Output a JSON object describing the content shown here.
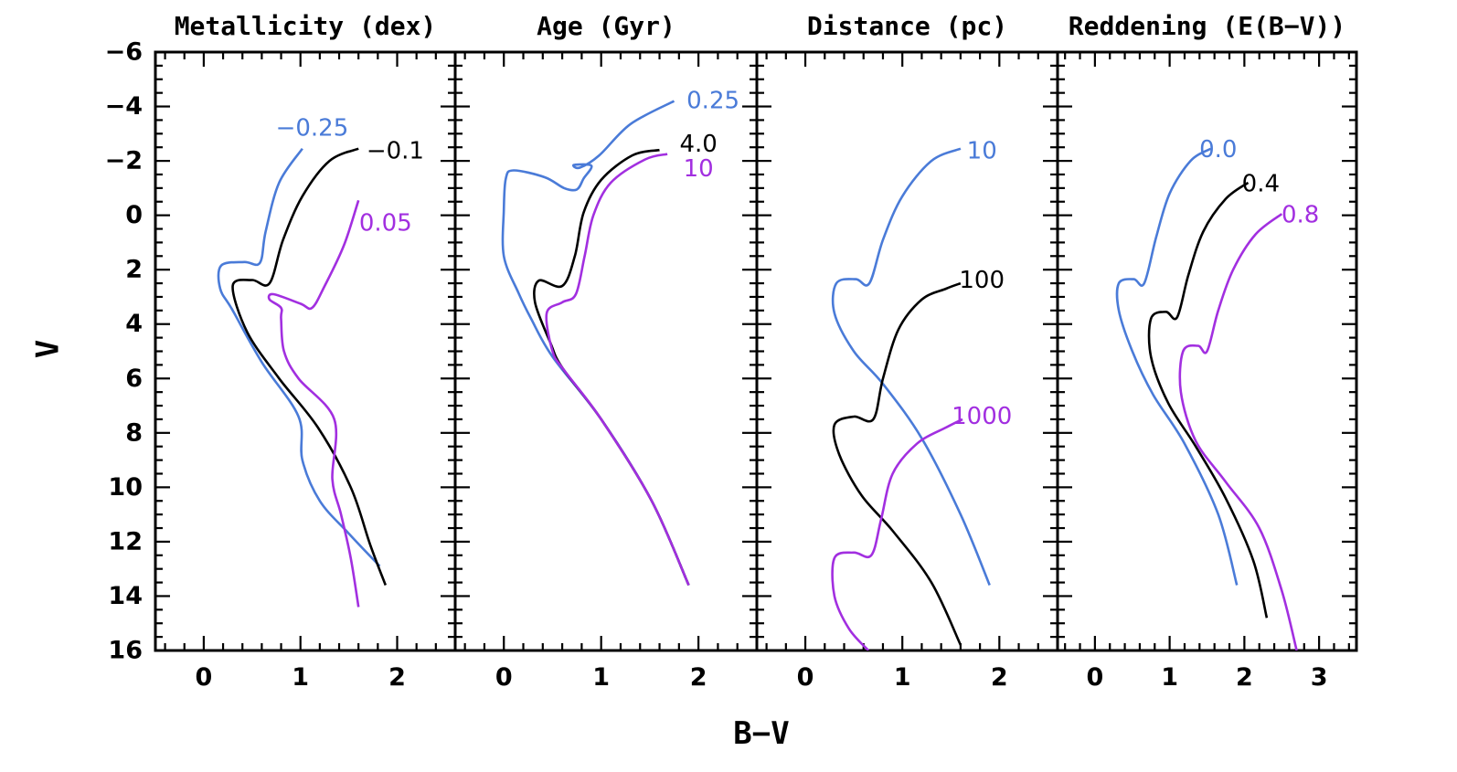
{
  "colors": {
    "blue": "#4a7bd8",
    "black": "#000000",
    "purple": "#a22fe0"
  },
  "chart_data": {
    "type": "line",
    "xlabel": "B−V",
    "ylabel": "V",
    "ylim": [
      16,
      -6
    ],
    "yticks": [
      -6,
      -4,
      -2,
      0,
      2,
      4,
      6,
      8,
      10,
      12,
      14,
      16
    ],
    "ytick_labels": [
      "−6",
      "−4",
      "−2",
      "0",
      "2",
      "4",
      "6",
      "8",
      "10",
      "12",
      "14",
      "16"
    ],
    "panels": [
      {
        "title": "Metallicity (dex)",
        "xlim": [
          -0.5,
          2.6
        ],
        "xticks": [
          0,
          1,
          2
        ],
        "xtick_labels": [
          "0",
          "1",
          "2"
        ],
        "series": [
          {
            "label": "−0.25",
            "color": "blue",
            "label_at": [
              1.12,
              -3.2
            ],
            "points": [
              [
                1.82,
                12.9
              ],
              [
                1.5,
                11.7
              ],
              [
                1.2,
                10.5
              ],
              [
                1.02,
                9.0
              ],
              [
                0.98,
                7.4
              ],
              [
                0.6,
                5.4
              ],
              [
                0.3,
                3.5
              ],
              [
                0.17,
                2.7
              ],
              [
                0.18,
                1.85
              ],
              [
                0.42,
                1.72
              ],
              [
                0.58,
                1.75
              ],
              [
                0.64,
                0.6
              ],
              [
                0.78,
                -1.2
              ],
              [
                1.02,
                -2.45
              ]
            ]
          },
          {
            "label": "−0.1",
            "color": "black",
            "label_at": [
              1.98,
              -2.35
            ],
            "points": [
              [
                1.88,
                13.6
              ],
              [
                1.72,
                12.1
              ],
              [
                1.52,
                10.0
              ],
              [
                1.18,
                7.8
              ],
              [
                0.78,
                6.0
              ],
              [
                0.45,
                4.3
              ],
              [
                0.3,
                2.6
              ],
              [
                0.5,
                2.38
              ],
              [
                0.68,
                2.5
              ],
              [
                0.82,
                0.9
              ],
              [
                1.02,
                -0.7
              ],
              [
                1.3,
                -2.0
              ],
              [
                1.6,
                -2.45
              ]
            ]
          },
          {
            "label": "0.05",
            "color": "purple",
            "label_at": [
              1.88,
              0.3
            ],
            "points": [
              [
                1.6,
                14.4
              ],
              [
                1.52,
                12.6
              ],
              [
                1.42,
                11.0
              ],
              [
                1.33,
                9.7
              ],
              [
                1.35,
                7.5
              ],
              [
                0.98,
                6.0
              ],
              [
                0.83,
                5.0
              ],
              [
                0.8,
                3.8
              ],
              [
                0.8,
                3.4
              ],
              [
                0.68,
                3.1
              ],
              [
                0.72,
                2.9
              ],
              [
                1.0,
                3.25
              ],
              [
                1.12,
                3.4
              ],
              [
                1.25,
                2.6
              ],
              [
                1.45,
                1.1
              ],
              [
                1.6,
                -0.55
              ]
            ]
          }
        ]
      },
      {
        "title": "Age (Gyr)",
        "xlim": [
          -0.5,
          2.6
        ],
        "xticks": [
          0,
          1,
          2
        ],
        "xtick_labels": [
          "0",
          "1",
          "2"
        ],
        "series": [
          {
            "label": "0.25",
            "color": "blue",
            "label_at": [
              2.15,
              -4.2
            ],
            "points": [
              [
                1.9,
                13.6
              ],
              [
                1.52,
                10.5
              ],
              [
                1.0,
                7.5
              ],
              [
                0.5,
                5.2
              ],
              [
                0.28,
                3.8
              ],
              [
                0.15,
                2.85
              ],
              [
                0.0,
                1.5
              ],
              [
                0.0,
                -0.2
              ],
              [
                0.02,
                -1.35
              ],
              [
                0.1,
                -1.65
              ],
              [
                0.42,
                -1.4
              ],
              [
                0.62,
                -1.0
              ],
              [
                0.75,
                -0.95
              ],
              [
                0.82,
                -1.35
              ],
              [
                0.9,
                -1.82
              ],
              [
                0.72,
                -1.85
              ],
              [
                0.78,
                -1.75
              ],
              [
                0.98,
                -2.2
              ],
              [
                1.3,
                -3.35
              ],
              [
                1.75,
                -4.2
              ]
            ]
          },
          {
            "label": "4.0",
            "color": "black",
            "label_at": [
              2.0,
              -2.6
            ],
            "points": [
              [
                1.9,
                13.6
              ],
              [
                1.52,
                10.5
              ],
              [
                1.0,
                7.5
              ],
              [
                0.6,
                5.6
              ],
              [
                0.48,
                4.7
              ],
              [
                0.32,
                3.2
              ],
              [
                0.36,
                2.4
              ],
              [
                0.6,
                2.6
              ],
              [
                0.73,
                1.5
              ],
              [
                0.82,
                -0.1
              ],
              [
                1.0,
                -1.3
              ],
              [
                1.32,
                -2.2
              ],
              [
                1.6,
                -2.4
              ]
            ]
          },
          {
            "label": "10",
            "color": "purple",
            "label_at": [
              2.0,
              -1.7
            ],
            "points": [
              [
                1.9,
                13.6
              ],
              [
                1.52,
                10.5
              ],
              [
                1.0,
                7.5
              ],
              [
                0.62,
                5.7
              ],
              [
                0.5,
                5.0
              ],
              [
                0.44,
                3.6
              ],
              [
                0.6,
                3.2
              ],
              [
                0.74,
                2.9
              ],
              [
                0.83,
                1.5
              ],
              [
                0.92,
                0.0
              ],
              [
                1.1,
                -1.2
              ],
              [
                1.45,
                -2.05
              ],
              [
                1.68,
                -2.25
              ]
            ]
          }
        ]
      },
      {
        "title": "Distance (pc)",
        "xlim": [
          -0.5,
          2.6
        ],
        "xticks": [
          0,
          1,
          2
        ],
        "xtick_labels": [
          "0",
          "1",
          "2"
        ],
        "series": [
          {
            "label": "10",
            "color": "blue",
            "label_at": [
              1.82,
              -2.35
            ],
            "points": [
              [
                1.9,
                13.6
              ],
              [
                1.6,
                11.0
              ],
              [
                1.2,
                8.2
              ],
              [
                0.8,
                6.2
              ],
              [
                0.5,
                5.0
              ],
              [
                0.3,
                3.6
              ],
              [
                0.32,
                2.5
              ],
              [
                0.52,
                2.35
              ],
              [
                0.66,
                2.5
              ],
              [
                0.8,
                0.9
              ],
              [
                1.0,
                -0.7
              ],
              [
                1.3,
                -2.0
              ],
              [
                1.6,
                -2.45
              ]
            ]
          },
          {
            "label": "100",
            "color": "black",
            "label_at": [
              1.82,
              2.4
            ],
            "points": [
              [
                1.6,
                15.8
              ],
              [
                1.3,
                13.5
              ],
              [
                0.9,
                11.6
              ],
              [
                0.58,
                10.3
              ],
              [
                0.35,
                8.8
              ],
              [
                0.3,
                7.7
              ],
              [
                0.5,
                7.4
              ],
              [
                0.7,
                7.5
              ],
              [
                0.8,
                6.0
              ],
              [
                0.96,
                4.2
              ],
              [
                1.2,
                3.1
              ],
              [
                1.45,
                2.7
              ],
              [
                1.6,
                2.5
              ]
            ]
          },
          {
            "label": "1000",
            "color": "purple",
            "label_at": [
              1.82,
              7.4
            ],
            "points": [
              [
                0.65,
                16.0
              ],
              [
                0.45,
                15.2
              ],
              [
                0.3,
                14.0
              ],
              [
                0.3,
                12.6
              ],
              [
                0.5,
                12.4
              ],
              [
                0.68,
                12.5
              ],
              [
                0.78,
                11.2
              ],
              [
                0.9,
                9.5
              ],
              [
                1.15,
                8.4
              ],
              [
                1.45,
                7.8
              ],
              [
                1.62,
                7.5
              ]
            ]
          }
        ]
      },
      {
        "title": "Reddening (E(B−V))",
        "xlim": [
          -0.5,
          3.5
        ],
        "xticks": [
          0,
          1,
          2,
          3
        ],
        "xtick_labels": [
          "0",
          "1",
          "2",
          "3"
        ],
        "series": [
          {
            "label": "0.0",
            "color": "blue",
            "label_at": [
              1.65,
              -2.4
            ],
            "points": [
              [
                1.9,
                13.6
              ],
              [
                1.65,
                11.0
              ],
              [
                1.2,
                8.4
              ],
              [
                0.78,
                6.6
              ],
              [
                0.5,
                5.0
              ],
              [
                0.32,
                3.5
              ],
              [
                0.32,
                2.5
              ],
              [
                0.52,
                2.35
              ],
              [
                0.66,
                2.5
              ],
              [
                0.82,
                0.8
              ],
              [
                1.0,
                -0.8
              ],
              [
                1.28,
                -2.0
              ],
              [
                1.55,
                -2.45
              ]
            ]
          },
          {
            "label": "0.4",
            "color": "black",
            "label_at": [
              2.22,
              -1.15
            ],
            "points": [
              [
                2.3,
                14.8
              ],
              [
                2.12,
                12.7
              ],
              [
                1.75,
                10.4
              ],
              [
                1.35,
                8.5
              ],
              [
                0.98,
                6.9
              ],
              [
                0.75,
                5.2
              ],
              [
                0.75,
                3.8
              ],
              [
                0.95,
                3.55
              ],
              [
                1.1,
                3.75
              ],
              [
                1.25,
                2.2
              ],
              [
                1.45,
                0.6
              ],
              [
                1.75,
                -0.6
              ],
              [
                2.05,
                -1.2
              ]
            ]
          },
          {
            "label": "0.8",
            "color": "purple",
            "label_at": [
              2.75,
              0.0
            ],
            "points": [
              [
                2.7,
                16.0
              ],
              [
                2.5,
                13.8
              ],
              [
                2.2,
                11.5
              ],
              [
                1.75,
                9.8
              ],
              [
                1.35,
                8.3
              ],
              [
                1.15,
                6.5
              ],
              [
                1.18,
                5.0
              ],
              [
                1.38,
                4.8
              ],
              [
                1.5,
                5.0
              ],
              [
                1.65,
                3.5
              ],
              [
                1.85,
                2.0
              ],
              [
                2.15,
                0.7
              ],
              [
                2.5,
                -0.05
              ]
            ]
          }
        ]
      }
    ]
  }
}
